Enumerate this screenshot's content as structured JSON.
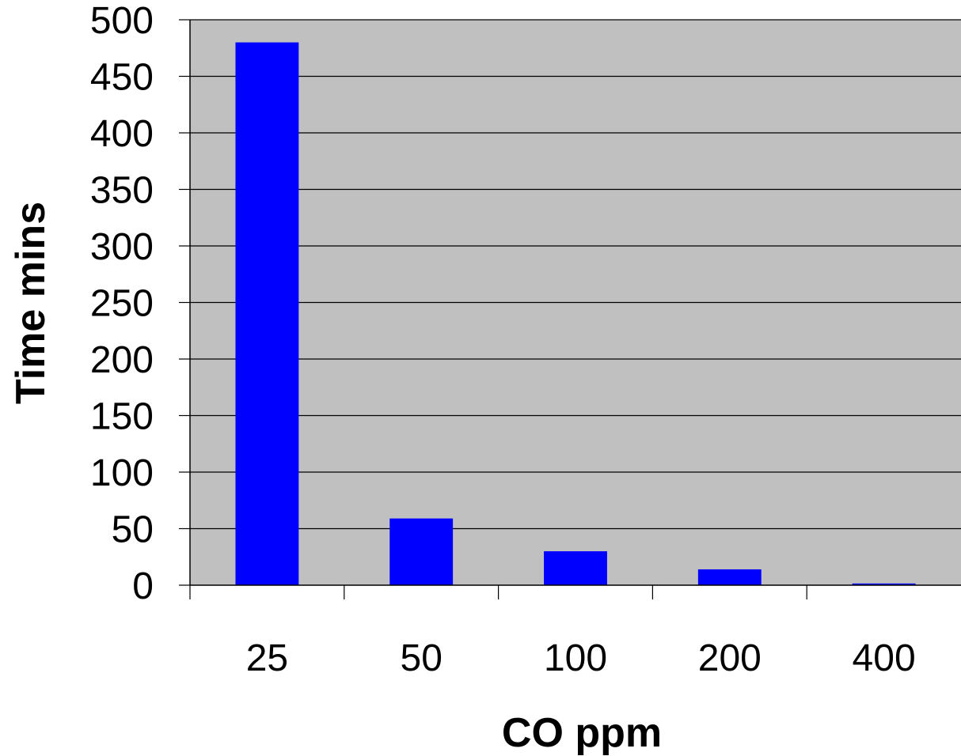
{
  "chart_data": {
    "type": "bar",
    "categories": [
      "25",
      "50",
      "100",
      "200",
      "400"
    ],
    "values": [
      480,
      59,
      30,
      14,
      1.5
    ],
    "xlabel": "CO ppm",
    "ylabel": "Time mins",
    "ylim": [
      0,
      500
    ],
    "yticks": [
      "0",
      "50",
      "100",
      "150",
      "200",
      "250",
      "300",
      "350",
      "400",
      "450",
      "500"
    ],
    "grid": true,
    "legend": "none",
    "colors": {
      "bar": "#0000FF",
      "plot_background": "#C0C0C0",
      "gridline": "#000000",
      "axis": "#000000"
    }
  }
}
